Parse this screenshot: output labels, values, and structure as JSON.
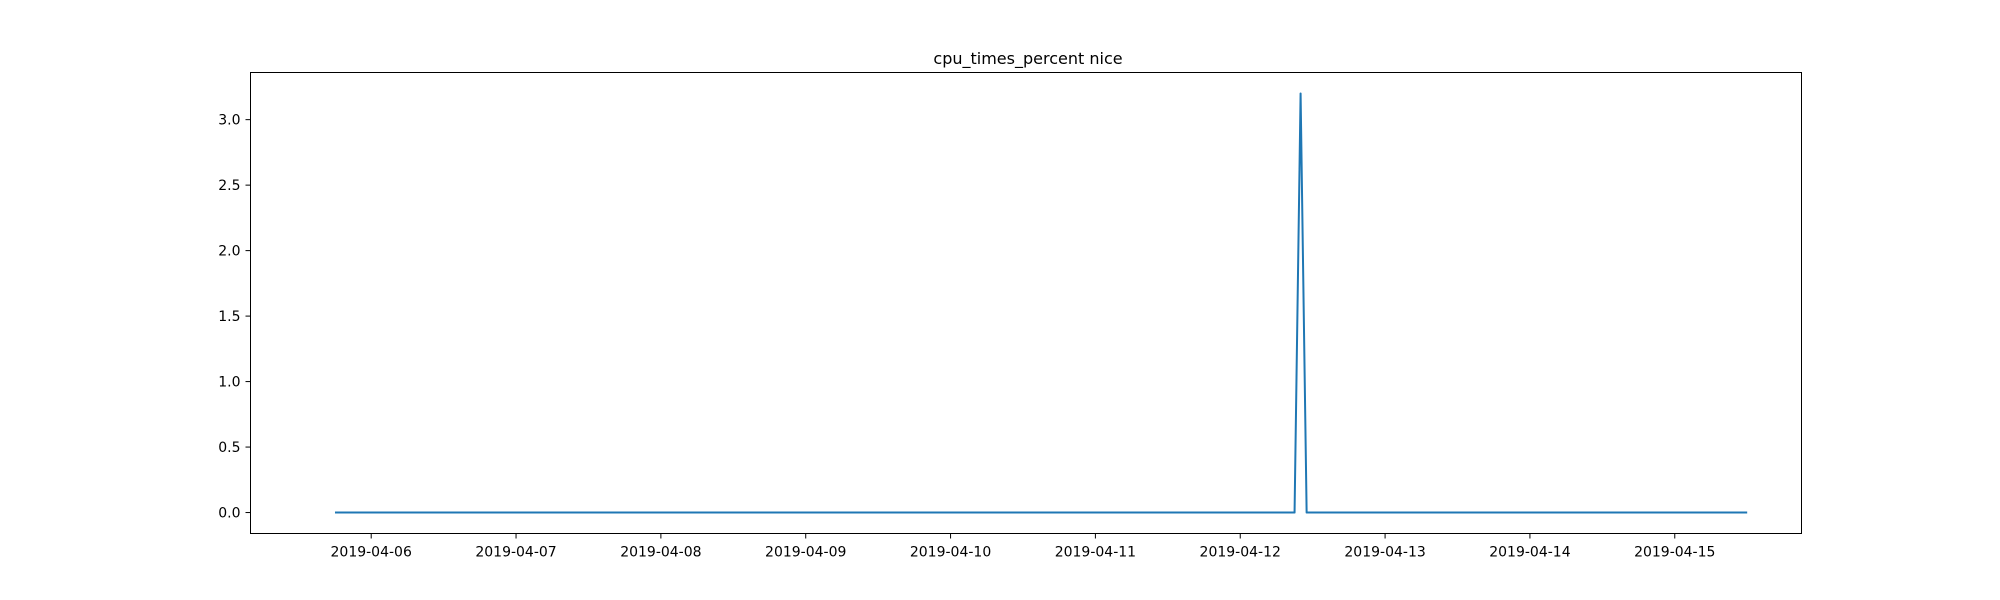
{
  "chart_data": {
    "type": "line",
    "title": "cpu_times_percent nice",
    "xlabel": "",
    "ylabel": "",
    "xlim": [
      "2019-04-05T04:00",
      "2019-04-15T21:00"
    ],
    "ylim": [
      -0.16,
      3.36
    ],
    "x_ticks": [
      "2019-04-06",
      "2019-04-07",
      "2019-04-08",
      "2019-04-09",
      "2019-04-10",
      "2019-04-11",
      "2019-04-12",
      "2019-04-13",
      "2019-04-14",
      "2019-04-15"
    ],
    "y_ticks": [
      "0.0",
      "0.5",
      "1.0",
      "1.5",
      "2.0",
      "2.5",
      "3.0"
    ],
    "grid": false,
    "series": [
      {
        "color": "#1f77b4",
        "points": [
          {
            "x": "2019-04-05T18:00",
            "y": 0.0
          },
          {
            "x": "2019-04-12T09:00",
            "y": 0.0
          },
          {
            "x": "2019-04-12T10:00",
            "y": 3.2
          },
          {
            "x": "2019-04-12T11:00",
            "y": 0.0
          },
          {
            "x": "2019-04-15T12:00",
            "y": 0.0
          }
        ]
      }
    ]
  }
}
